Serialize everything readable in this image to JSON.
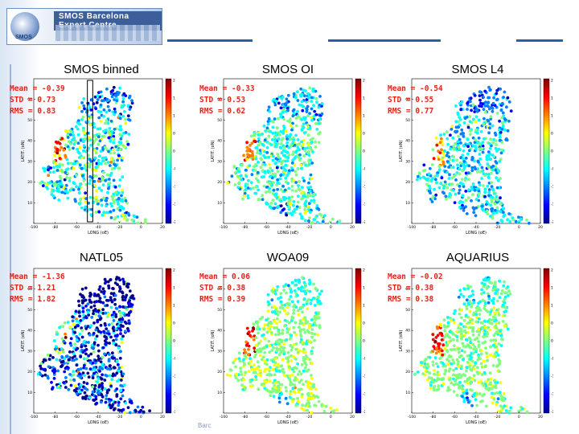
{
  "header": {
    "logo_text": "SMOS Barcelona Expert Centre",
    "logo_mark": "SMOS",
    "accent_color": "#2f5ea8"
  },
  "footer": {
    "text": "Barc"
  },
  "colormap": [
    "#00008f",
    "#0000ff",
    "#0080ff",
    "#00ffff",
    "#80ff80",
    "#ffff00",
    "#ff8000",
    "#ff0000",
    "#800000"
  ],
  "chart_data": [
    {
      "type": "scatter",
      "title": "SMOS binned",
      "stats": {
        "mean": "Mean = -0.39",
        "std": "STD = 0.73",
        "rms": "RMS = 0.83"
      },
      "xlabel": "LONG (oE)",
      "ylabel": "LATIT. (oN)",
      "xticks": [
        "-100",
        "-80",
        "-60",
        "-40",
        "-20",
        "0",
        "20"
      ],
      "yticks": [
        "10",
        "20",
        "30",
        "40",
        "50",
        "60"
      ],
      "xlim": [
        -100,
        20
      ],
      "ylim": [
        0,
        70
      ],
      "colorbar_ticks": [
        "2",
        "1.5",
        "1",
        "0.5",
        "0",
        "-0.5",
        "-1",
        "-1.5",
        "-2"
      ],
      "mean_value": -0.39,
      "std_value": 0.73,
      "box_lon": [
        -50,
        -45
      ]
    },
    {
      "type": "scatter",
      "title": "SMOS OI",
      "stats": {
        "mean": "Mean = -0.33",
        "std": "STD = 0.53",
        "rms": "RMS = 0.62"
      },
      "xlabel": "LONG (oE)",
      "ylabel": "LATIT. (oN)",
      "xticks": [
        "-100",
        "-80",
        "-60",
        "-40",
        "-20",
        "0",
        "20"
      ],
      "yticks": [
        "10",
        "20",
        "30",
        "40",
        "50",
        "60"
      ],
      "xlim": [
        -100,
        20
      ],
      "ylim": [
        0,
        70
      ],
      "colorbar_ticks": [
        "2",
        "1.5",
        "1",
        "0.5",
        "0",
        "-0.5",
        "-1",
        "-1.5",
        "-2"
      ],
      "mean_value": -0.33,
      "std_value": 0.53
    },
    {
      "type": "scatter",
      "title": "SMOS L4",
      "stats": {
        "mean": "Mean = -0.54",
        "std": "STD = 0.55",
        "rms": "RMS = 0.77"
      },
      "xlabel": "LONG (oE)",
      "ylabel": "LATIT. (oN)",
      "xticks": [
        "-100",
        "-80",
        "-60",
        "-40",
        "-20",
        "0",
        "20"
      ],
      "yticks": [
        "10",
        "20",
        "30",
        "40",
        "50",
        "60"
      ],
      "xlim": [
        -100,
        20
      ],
      "ylim": [
        0,
        70
      ],
      "colorbar_ticks": [
        "2",
        "1.5",
        "1",
        "0.5",
        "0",
        "-0.5",
        "-1",
        "-1.5",
        "-2"
      ],
      "mean_value": -0.54,
      "std_value": 0.55
    },
    {
      "type": "scatter",
      "title": "NATL05",
      "stats": {
        "mean": "Mean = -1.36",
        "std": "STD = 1.21",
        "rms": "RMS = 1.82"
      },
      "xlabel": "LONG (oE)",
      "ylabel": "LATIT. (oN)",
      "xticks": [
        "-100",
        "-80",
        "-60",
        "-40",
        "-20",
        "0",
        "20"
      ],
      "yticks": [
        "10",
        "20",
        "30",
        "40",
        "50",
        "60"
      ],
      "xlim": [
        -100,
        20
      ],
      "ylim": [
        0,
        70
      ],
      "colorbar_ticks": [
        "2",
        "1.5",
        "1",
        "0.5",
        "0",
        "-0.5",
        "-1",
        "-1.5",
        "-2"
      ],
      "mean_value": -1.36,
      "std_value": 1.21
    },
    {
      "type": "scatter",
      "title": "WOA09",
      "stats": {
        "mean": "Mean = 0.06",
        "std": "STD = 0.38",
        "rms": "RMS = 0.39"
      },
      "xlabel": "LONG (oE)",
      "ylabel": "LATIT. (oN)",
      "xticks": [
        "-100",
        "-80",
        "-60",
        "-40",
        "-20",
        "0",
        "20"
      ],
      "yticks": [
        "10",
        "20",
        "30",
        "40",
        "50",
        "60"
      ],
      "xlim": [
        -100,
        20
      ],
      "ylim": [
        0,
        70
      ],
      "colorbar_ticks": [
        "2",
        "1.5",
        "1",
        "0.5",
        "0",
        "-0.5",
        "-1",
        "-1.5",
        "-2"
      ],
      "mean_value": 0.06,
      "std_value": 0.38
    },
    {
      "type": "scatter",
      "title": "AQUARIUS",
      "stats": {
        "mean": "Mean = -0.02",
        "std": "STD = 0.38",
        "rms": "RMS = 0.38"
      },
      "xlabel": "LONG (oE)",
      "ylabel": "LATIT. (oN)",
      "xticks": [
        "-100",
        "-80",
        "-60",
        "-40",
        "-20",
        "0",
        "20"
      ],
      "yticks": [
        "10",
        "20",
        "30",
        "40",
        "50",
        "60"
      ],
      "xlim": [
        -100,
        20
      ],
      "ylim": [
        0,
        70
      ],
      "colorbar_ticks": [
        "2",
        "1.5",
        "1",
        "0.5",
        "0",
        "-0.5",
        "-1",
        "-1.5",
        "-2"
      ],
      "mean_value": -0.02,
      "std_value": 0.38
    }
  ]
}
